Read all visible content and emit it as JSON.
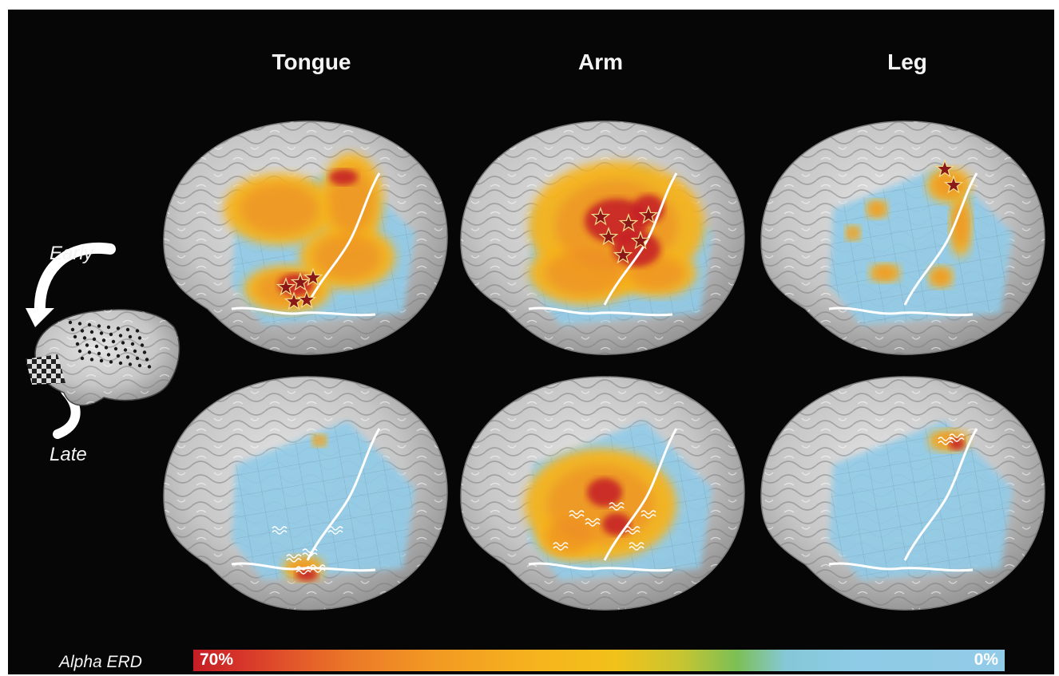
{
  "columns": [
    "Tongue",
    "Arm",
    "Leg"
  ],
  "rows": [
    "Early",
    "Late"
  ],
  "colorbar": {
    "label": "Alpha ERD",
    "max_label": "70%",
    "min_label": "0%",
    "high_color": "#c41d25",
    "mid_color": "#f6b31d",
    "low_color": "#92cbe7"
  },
  "panels": [
    {
      "name": "Tongue early",
      "activation": "tongue-early",
      "marker": "star"
    },
    {
      "name": "Arm early",
      "activation": "arm-early",
      "marker": "star"
    },
    {
      "name": "Leg early",
      "activation": "leg-early",
      "marker": "star"
    },
    {
      "name": "Tongue late",
      "activation": "tongue-late",
      "marker": "wave"
    },
    {
      "name": "Arm late",
      "activation": "arm-late",
      "marker": "wave"
    },
    {
      "name": "Leg late",
      "activation": "leg-late",
      "marker": "wave"
    }
  ],
  "colors": {
    "background": "#060606",
    "brain": "#c9c9c9",
    "sulcus_line": "#ffffff",
    "star_fill": "#8a1818"
  }
}
